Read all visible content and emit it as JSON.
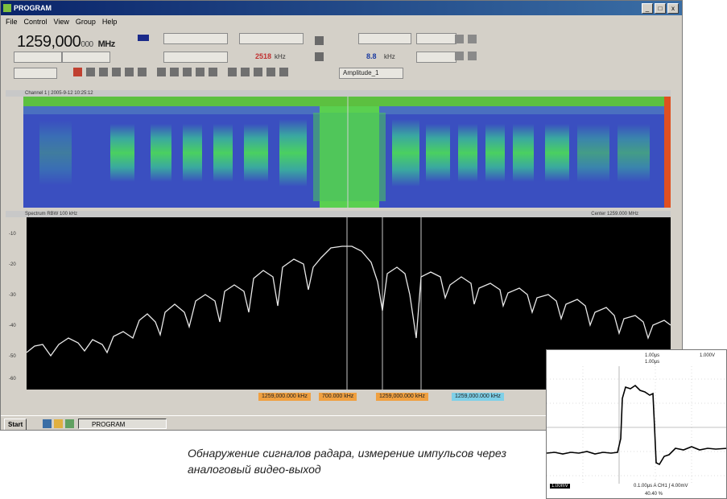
{
  "window": {
    "title": "PROGRAM",
    "controls": [
      "_",
      "□",
      "x"
    ]
  },
  "menubar": {
    "items": [
      "File",
      "Control",
      "View",
      "Group",
      "Help"
    ]
  },
  "toolbar": {
    "frequency_main": "1259,000",
    "frequency_sub": "000",
    "frequency_unit": "MHz",
    "field_value": "2518",
    "field_unit": "kHz",
    "value_b": "8.8",
    "value_b_unit": "kHz",
    "dropdown_mode": "Amplitude_1"
  },
  "waterfall": {
    "header": "Channel 1 | 2005-9-12 10:25:12"
  },
  "spectrum": {
    "header": "Spectrum  RBW 100 kHz",
    "header_right": "Center  1259.000 MHz",
    "yticks": [
      "-10",
      "-20",
      "-30",
      "-40",
      "-50",
      "-60"
    ],
    "colors": {
      "trace": "#e8e8e8",
      "marker": "#c8c8c8",
      "background": "#000000"
    }
  },
  "markers": [
    {
      "label": "1259,000.000 kHz",
      "color": "#f0a040"
    },
    {
      "label": "700.000 kHz",
      "color": "#f0a040"
    },
    {
      "label": "1259,000.000 kHz",
      "color": "#f0a040"
    },
    {
      "label": "1259,000.000 kHz",
      "color": "#7fd0e8"
    }
  ],
  "taskbar": {
    "start_label": "Start",
    "task_label": "PROGRAM"
  },
  "caption": "Обнаружение сигналов радара, измерение импульсов через аналоговый видео-выход",
  "scope": {
    "readout_top": [
      "1.00μs",
      "1.00μs"
    ],
    "readout_right": "1.000V",
    "readout_bottom": "0.1.00μs  A  CH1  ∫ 4.00mV",
    "readout_bl": "1.00mV",
    "readout_br": "40.40 %"
  }
}
